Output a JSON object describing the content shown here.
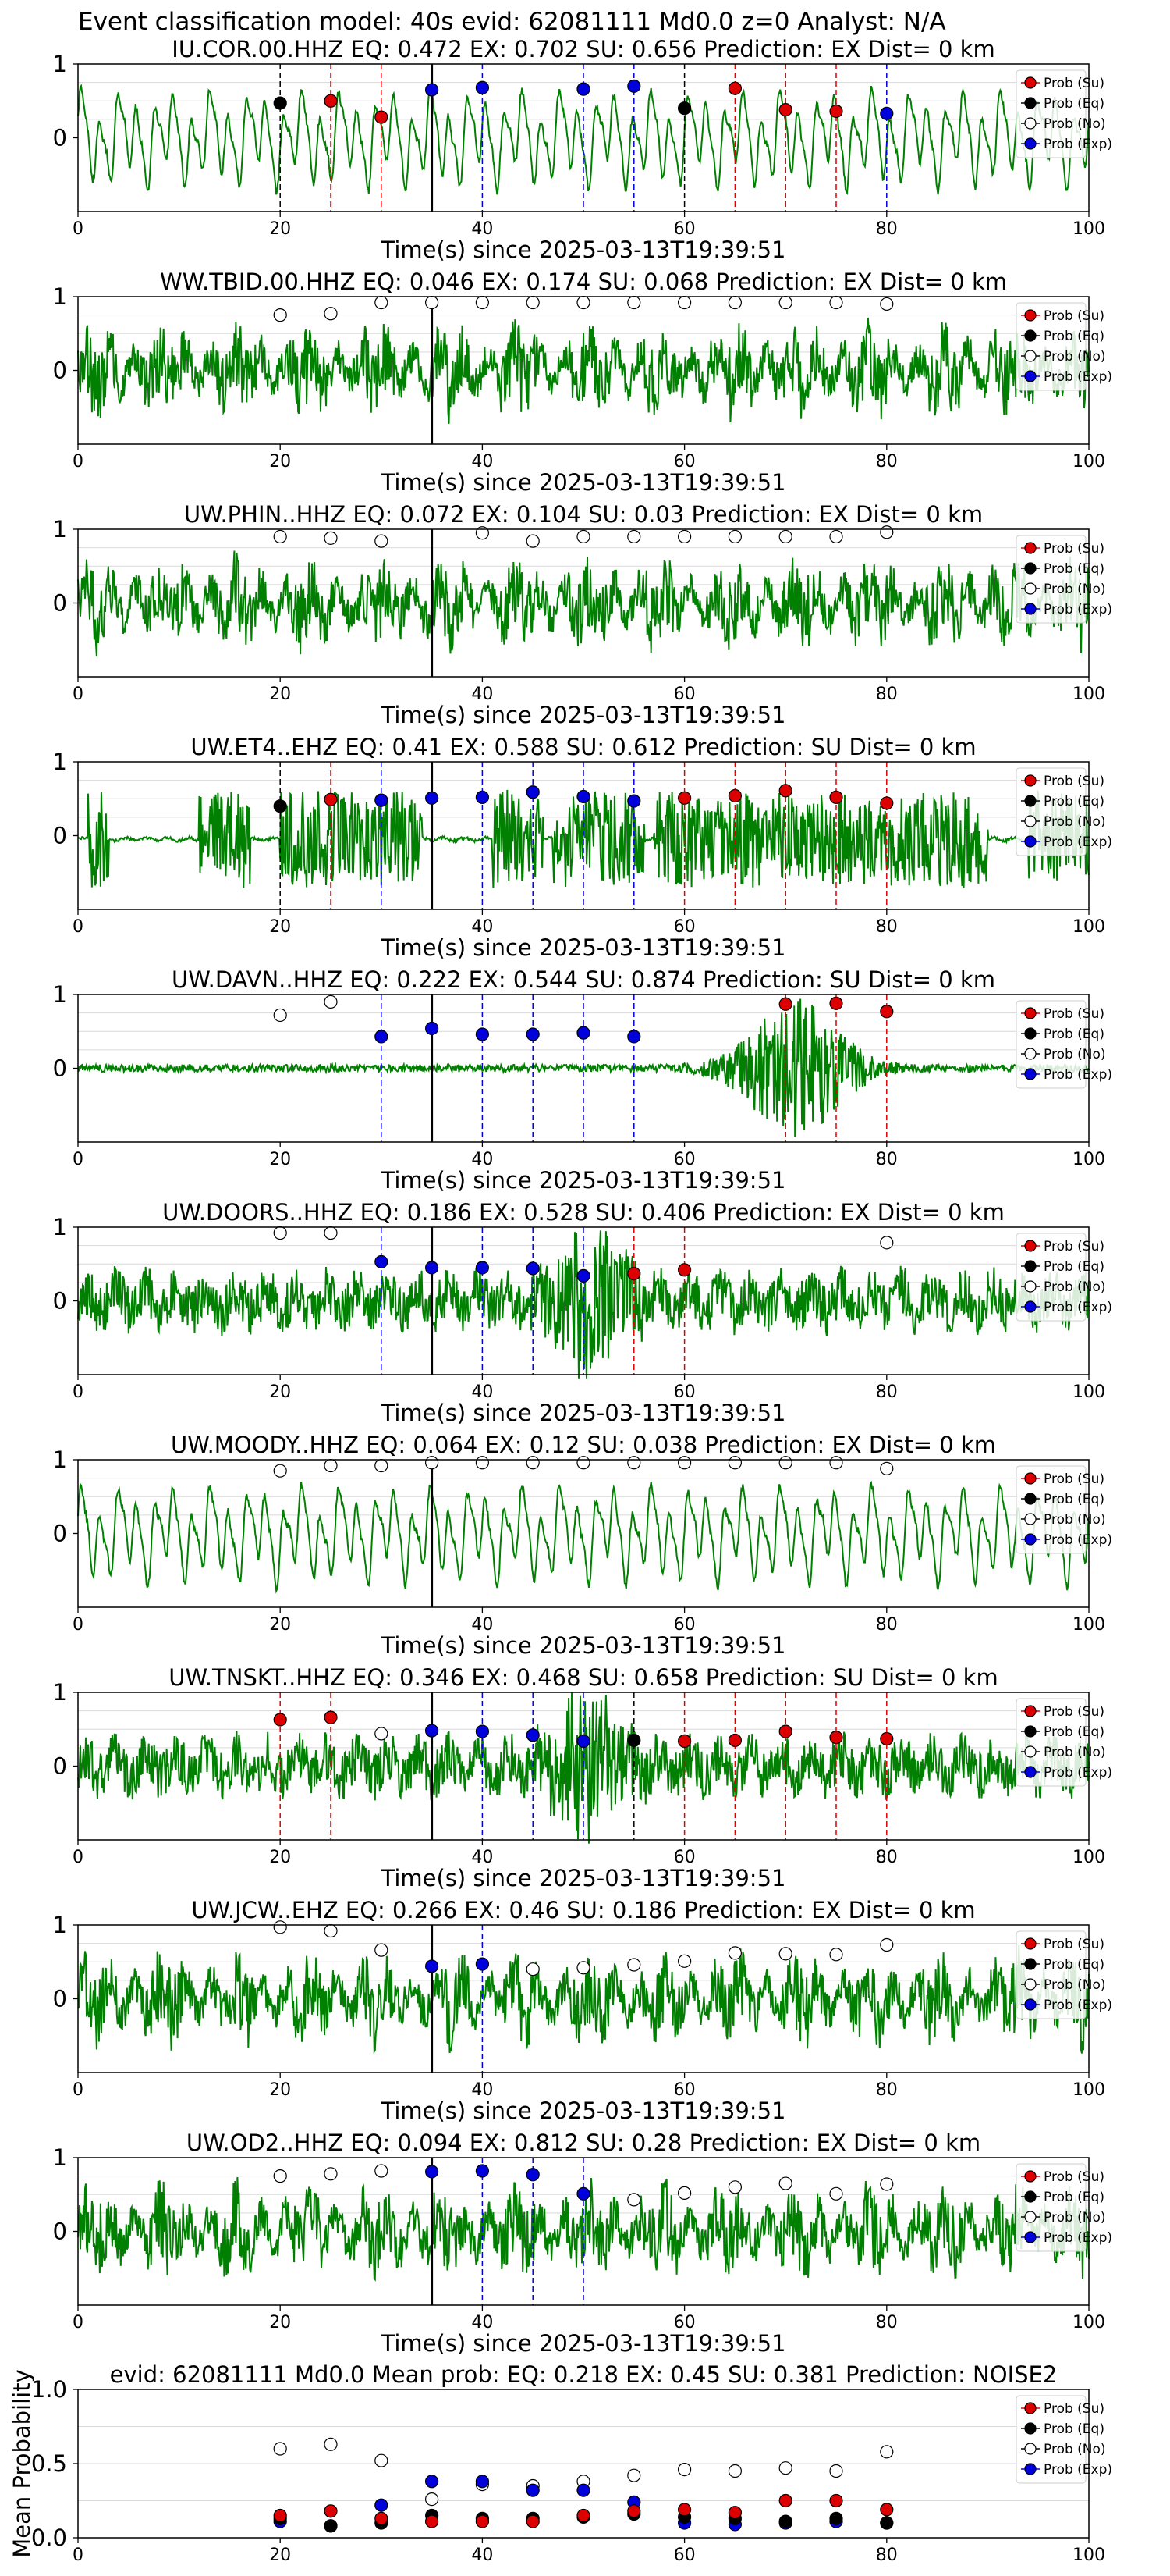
{
  "figure": {
    "suptitle": "Event classification model: 40s evid: 62081111 Md0.0 z=0 Analyst: N/A",
    "xlabel": "Time(s) since 2025-03-13T19:39:51",
    "legend": [
      "Prob (Su)",
      "Prob (Eq)",
      "Prob (No)",
      "Prob (Exp)"
    ],
    "colors": {
      "su": "#dd0000",
      "eq": "#000000",
      "no": "#ffffff",
      "exp": "#0000dd",
      "trace": "#008000",
      "grid": "#d9d9d9"
    }
  },
  "chart_data": [
    {
      "type": "line",
      "title": "IU.COR.00.HHZ   EQ: 0.472  EX: 0.702  SU: 0.656   Prediction: EX    Dist= 0 km",
      "xlim": [
        0,
        100
      ],
      "ylim": [
        -1,
        1
      ],
      "xticks": [
        0,
        20,
        40,
        60,
        80,
        100
      ],
      "yticks": [
        0,
        1
      ],
      "grid": true,
      "trace_style": "lowfreq",
      "origin_line": 35,
      "eq_lines": [
        20,
        60
      ],
      "su_lines": [
        25,
        30,
        65,
        70,
        75
      ],
      "exp_lines": [
        35,
        40,
        50,
        55,
        80
      ],
      "points": [
        {
          "x": 20,
          "y": 0.47,
          "cls": "eq"
        },
        {
          "x": 25,
          "y": 0.5,
          "cls": "su"
        },
        {
          "x": 30,
          "y": 0.28,
          "cls": "su"
        },
        {
          "x": 35,
          "y": 0.65,
          "cls": "exp"
        },
        {
          "x": 40,
          "y": 0.68,
          "cls": "exp"
        },
        {
          "x": 50,
          "y": 0.66,
          "cls": "exp"
        },
        {
          "x": 55,
          "y": 0.7,
          "cls": "exp"
        },
        {
          "x": 60,
          "y": 0.4,
          "cls": "eq"
        },
        {
          "x": 65,
          "y": 0.67,
          "cls": "su"
        },
        {
          "x": 70,
          "y": 0.38,
          "cls": "su"
        },
        {
          "x": 75,
          "y": 0.36,
          "cls": "su"
        },
        {
          "x": 80,
          "y": 0.33,
          "cls": "exp"
        }
      ]
    },
    {
      "type": "line",
      "title": "WW.TBID.00.HHZ   EQ: 0.046  EX: 0.174  SU: 0.068   Prediction: EX    Dist= 0 km",
      "xlim": [
        0,
        100
      ],
      "ylim": [
        -1,
        1
      ],
      "xticks": [
        0,
        20,
        40,
        60,
        80,
        100
      ],
      "yticks": [
        0,
        1
      ],
      "grid": true,
      "trace_style": "noise",
      "origin_line": 35,
      "eq_lines": [],
      "su_lines": [],
      "exp_lines": [],
      "points": [
        {
          "x": 20,
          "y": 0.75,
          "cls": "no"
        },
        {
          "x": 25,
          "y": 0.77,
          "cls": "no"
        },
        {
          "x": 30,
          "y": 0.92,
          "cls": "no"
        },
        {
          "x": 35,
          "y": 0.92,
          "cls": "no"
        },
        {
          "x": 40,
          "y": 0.92,
          "cls": "no"
        },
        {
          "x": 45,
          "y": 0.92,
          "cls": "no"
        },
        {
          "x": 50,
          "y": 0.92,
          "cls": "no"
        },
        {
          "x": 55,
          "y": 0.92,
          "cls": "no"
        },
        {
          "x": 60,
          "y": 0.92,
          "cls": "no"
        },
        {
          "x": 65,
          "y": 0.92,
          "cls": "no"
        },
        {
          "x": 70,
          "y": 0.92,
          "cls": "no"
        },
        {
          "x": 75,
          "y": 0.92,
          "cls": "no"
        },
        {
          "x": 80,
          "y": 0.9,
          "cls": "no"
        }
      ]
    },
    {
      "type": "line",
      "title": "UW.PHIN..HHZ   EQ: 0.072  EX: 0.104  SU: 0.03   Prediction: EX    Dist= 0 km",
      "xlim": [
        0,
        100
      ],
      "ylim": [
        -1,
        1
      ],
      "xticks": [
        0,
        20,
        40,
        60,
        80,
        100
      ],
      "yticks": [
        0,
        1
      ],
      "grid": true,
      "trace_style": "noise",
      "origin_line": 35,
      "eq_lines": [],
      "su_lines": [],
      "exp_lines": [],
      "points": [
        {
          "x": 20,
          "y": 0.9,
          "cls": "no"
        },
        {
          "x": 25,
          "y": 0.88,
          "cls": "no"
        },
        {
          "x": 30,
          "y": 0.84,
          "cls": "no"
        },
        {
          "x": 40,
          "y": 0.95,
          "cls": "no"
        },
        {
          "x": 45,
          "y": 0.84,
          "cls": "no"
        },
        {
          "x": 50,
          "y": 0.9,
          "cls": "no"
        },
        {
          "x": 55,
          "y": 0.9,
          "cls": "no"
        },
        {
          "x": 60,
          "y": 0.9,
          "cls": "no"
        },
        {
          "x": 65,
          "y": 0.9,
          "cls": "no"
        },
        {
          "x": 70,
          "y": 0.9,
          "cls": "no"
        },
        {
          "x": 75,
          "y": 0.9,
          "cls": "no"
        },
        {
          "x": 80,
          "y": 0.96,
          "cls": "no"
        }
      ]
    },
    {
      "type": "line",
      "title": "UW.ET4..EHZ   EQ: 0.41  EX: 0.588  SU: 0.612   Prediction: SU    Dist= 0 km",
      "xlim": [
        0,
        100
      ],
      "ylim": [
        -1,
        1
      ],
      "xticks": [
        0,
        20,
        40,
        60,
        80,
        100
      ],
      "yticks": [
        0,
        1
      ],
      "grid": true,
      "trace_style": "bursts",
      "origin_line": 35,
      "eq_lines": [
        20
      ],
      "su_lines": [
        25,
        60,
        65,
        70,
        75,
        80
      ],
      "exp_lines": [
        30,
        40,
        45,
        50,
        55
      ],
      "points": [
        {
          "x": 20,
          "y": 0.4,
          "cls": "eq"
        },
        {
          "x": 25,
          "y": 0.49,
          "cls": "su"
        },
        {
          "x": 30,
          "y": 0.48,
          "cls": "exp"
        },
        {
          "x": 35,
          "y": 0.51,
          "cls": "exp"
        },
        {
          "x": 40,
          "y": 0.52,
          "cls": "exp"
        },
        {
          "x": 45,
          "y": 0.59,
          "cls": "exp"
        },
        {
          "x": 50,
          "y": 0.53,
          "cls": "exp"
        },
        {
          "x": 55,
          "y": 0.47,
          "cls": "exp"
        },
        {
          "x": 60,
          "y": 0.51,
          "cls": "su"
        },
        {
          "x": 65,
          "y": 0.54,
          "cls": "su"
        },
        {
          "x": 70,
          "y": 0.61,
          "cls": "su"
        },
        {
          "x": 75,
          "y": 0.52,
          "cls": "su"
        },
        {
          "x": 80,
          "y": 0.44,
          "cls": "su"
        }
      ]
    },
    {
      "type": "line",
      "title": "UW.DAVN..HHZ   EQ: 0.222  EX: 0.544  SU: 0.874   Prediction: SU    Dist= 0 km",
      "xlim": [
        0,
        100
      ],
      "ylim": [
        -1,
        1
      ],
      "xticks": [
        0,
        20,
        40,
        60,
        80,
        100
      ],
      "yticks": [
        0,
        1
      ],
      "grid": true,
      "trace_style": "quiet_event",
      "origin_line": 35,
      "eq_lines": [],
      "su_lines": [
        70,
        75,
        80
      ],
      "exp_lines": [
        30,
        40,
        45,
        50,
        55
      ],
      "points": [
        {
          "x": 20,
          "y": 0.72,
          "cls": "no"
        },
        {
          "x": 25,
          "y": 0.9,
          "cls": "no"
        },
        {
          "x": 30,
          "y": 0.43,
          "cls": "exp"
        },
        {
          "x": 35,
          "y": 0.54,
          "cls": "exp"
        },
        {
          "x": 40,
          "y": 0.46,
          "cls": "exp"
        },
        {
          "x": 45,
          "y": 0.46,
          "cls": "exp"
        },
        {
          "x": 50,
          "y": 0.48,
          "cls": "exp"
        },
        {
          "x": 55,
          "y": 0.43,
          "cls": "exp"
        },
        {
          "x": 70,
          "y": 0.87,
          "cls": "su"
        },
        {
          "x": 75,
          "y": 0.88,
          "cls": "su"
        },
        {
          "x": 80,
          "y": 0.77,
          "cls": "su"
        }
      ]
    },
    {
      "type": "line",
      "title": "UW.DOORS..HHZ   EQ: 0.186  EX: 0.528  SU: 0.406   Prediction: EX    Dist= 0 km",
      "xlim": [
        0,
        100
      ],
      "ylim": [
        -1,
        1
      ],
      "xticks": [
        0,
        20,
        40,
        60,
        80,
        100
      ],
      "yticks": [
        0,
        1
      ],
      "grid": true,
      "trace_style": "mid_event",
      "origin_line": 35,
      "eq_lines": [],
      "su_lines": [
        55,
        60
      ],
      "exp_lines": [
        30,
        40,
        45,
        50
      ],
      "points": [
        {
          "x": 20,
          "y": 0.92,
          "cls": "no"
        },
        {
          "x": 25,
          "y": 0.92,
          "cls": "no"
        },
        {
          "x": 30,
          "y": 0.53,
          "cls": "exp"
        },
        {
          "x": 35,
          "y": 0.45,
          "cls": "exp"
        },
        {
          "x": 40,
          "y": 0.45,
          "cls": "exp"
        },
        {
          "x": 45,
          "y": 0.44,
          "cls": "exp"
        },
        {
          "x": 50,
          "y": 0.34,
          "cls": "exp"
        },
        {
          "x": 55,
          "y": 0.37,
          "cls": "su"
        },
        {
          "x": 60,
          "y": 0.42,
          "cls": "su"
        },
        {
          "x": 80,
          "y": 0.79,
          "cls": "no"
        }
      ]
    },
    {
      "type": "line",
      "title": "UW.MOODY..HHZ   EQ: 0.064  EX: 0.12  SU: 0.038   Prediction: EX    Dist= 0 km",
      "xlim": [
        0,
        100
      ],
      "ylim": [
        -1,
        1
      ],
      "xticks": [
        0,
        20,
        40,
        60,
        80,
        100
      ],
      "yticks": [
        0,
        1
      ],
      "grid": true,
      "trace_style": "lowfreq",
      "origin_line": 35,
      "eq_lines": [],
      "su_lines": [],
      "exp_lines": [],
      "points": [
        {
          "x": 20,
          "y": 0.85,
          "cls": "no"
        },
        {
          "x": 25,
          "y": 0.92,
          "cls": "no"
        },
        {
          "x": 30,
          "y": 0.92,
          "cls": "no"
        },
        {
          "x": 35,
          "y": 0.96,
          "cls": "no"
        },
        {
          "x": 40,
          "y": 0.96,
          "cls": "no"
        },
        {
          "x": 45,
          "y": 0.96,
          "cls": "no"
        },
        {
          "x": 50,
          "y": 0.96,
          "cls": "no"
        },
        {
          "x": 55,
          "y": 0.96,
          "cls": "no"
        },
        {
          "x": 60,
          "y": 0.96,
          "cls": "no"
        },
        {
          "x": 65,
          "y": 0.96,
          "cls": "no"
        },
        {
          "x": 70,
          "y": 0.96,
          "cls": "no"
        },
        {
          "x": 75,
          "y": 0.96,
          "cls": "no"
        },
        {
          "x": 80,
          "y": 0.88,
          "cls": "no"
        }
      ]
    },
    {
      "type": "line",
      "title": "UW.TNSKT..HHZ   EQ: 0.346  EX: 0.468  SU: 0.658   Prediction: SU    Dist= 0 km",
      "xlim": [
        0,
        100
      ],
      "ylim": [
        -1,
        1
      ],
      "xticks": [
        0,
        20,
        40,
        60,
        80,
        100
      ],
      "yticks": [
        0,
        1
      ],
      "grid": true,
      "trace_style": "mid_event",
      "origin_line": 35,
      "eq_lines": [
        55
      ],
      "su_lines": [
        20,
        25,
        60,
        65,
        70,
        75,
        80
      ],
      "exp_lines": [
        40,
        45,
        50
      ],
      "points": [
        {
          "x": 20,
          "y": 0.63,
          "cls": "su"
        },
        {
          "x": 25,
          "y": 0.66,
          "cls": "su"
        },
        {
          "x": 30,
          "y": 0.44,
          "cls": "no"
        },
        {
          "x": 35,
          "y": 0.48,
          "cls": "exp"
        },
        {
          "x": 40,
          "y": 0.47,
          "cls": "exp"
        },
        {
          "x": 45,
          "y": 0.42,
          "cls": "exp"
        },
        {
          "x": 50,
          "y": 0.34,
          "cls": "exp"
        },
        {
          "x": 55,
          "y": 0.35,
          "cls": "eq"
        },
        {
          "x": 60,
          "y": 0.34,
          "cls": "su"
        },
        {
          "x": 65,
          "y": 0.35,
          "cls": "su"
        },
        {
          "x": 70,
          "y": 0.47,
          "cls": "su"
        },
        {
          "x": 75,
          "y": 0.39,
          "cls": "su"
        },
        {
          "x": 80,
          "y": 0.37,
          "cls": "su"
        }
      ]
    },
    {
      "type": "line",
      "title": "UW.JCW..EHZ   EQ: 0.266  EX: 0.46  SU: 0.186   Prediction: EX    Dist= 0 km",
      "xlim": [
        0,
        100
      ],
      "ylim": [
        -1,
        1
      ],
      "xticks": [
        0,
        20,
        40,
        60,
        80,
        100
      ],
      "yticks": [
        0,
        1
      ],
      "grid": true,
      "trace_style": "noise",
      "origin_line": 35,
      "eq_lines": [],
      "su_lines": [],
      "exp_lines": [
        40
      ],
      "points": [
        {
          "x": 20,
          "y": 0.97,
          "cls": "no"
        },
        {
          "x": 25,
          "y": 0.92,
          "cls": "no"
        },
        {
          "x": 30,
          "y": 0.66,
          "cls": "no"
        },
        {
          "x": 35,
          "y": 0.44,
          "cls": "exp"
        },
        {
          "x": 40,
          "y": 0.47,
          "cls": "exp"
        },
        {
          "x": 45,
          "y": 0.4,
          "cls": "no"
        },
        {
          "x": 50,
          "y": 0.42,
          "cls": "no"
        },
        {
          "x": 55,
          "y": 0.46,
          "cls": "no"
        },
        {
          "x": 60,
          "y": 0.51,
          "cls": "no"
        },
        {
          "x": 65,
          "y": 0.62,
          "cls": "no"
        },
        {
          "x": 70,
          "y": 0.61,
          "cls": "no"
        },
        {
          "x": 75,
          "y": 0.6,
          "cls": "no"
        },
        {
          "x": 80,
          "y": 0.73,
          "cls": "no"
        }
      ]
    },
    {
      "type": "line",
      "title": "UW.OD2..HHZ   EQ: 0.094  EX: 0.812  SU: 0.28   Prediction: EX    Dist= 0 km",
      "xlim": [
        0,
        100
      ],
      "ylim": [
        -1,
        1
      ],
      "xticks": [
        0,
        20,
        40,
        60,
        80,
        100
      ],
      "yticks": [
        0,
        1
      ],
      "grid": true,
      "trace_style": "noise",
      "origin_line": 35,
      "eq_lines": [],
      "su_lines": [],
      "exp_lines": [
        40,
        45,
        50
      ],
      "points": [
        {
          "x": 20,
          "y": 0.75,
          "cls": "no"
        },
        {
          "x": 25,
          "y": 0.78,
          "cls": "no"
        },
        {
          "x": 30,
          "y": 0.82,
          "cls": "no"
        },
        {
          "x": 35,
          "y": 0.81,
          "cls": "exp"
        },
        {
          "x": 40,
          "y": 0.82,
          "cls": "exp"
        },
        {
          "x": 45,
          "y": 0.77,
          "cls": "exp"
        },
        {
          "x": 50,
          "y": 0.51,
          "cls": "exp"
        },
        {
          "x": 55,
          "y": 0.43,
          "cls": "no"
        },
        {
          "x": 60,
          "y": 0.52,
          "cls": "no"
        },
        {
          "x": 65,
          "y": 0.6,
          "cls": "no"
        },
        {
          "x": 70,
          "y": 0.65,
          "cls": "no"
        },
        {
          "x": 75,
          "y": 0.51,
          "cls": "no"
        },
        {
          "x": 80,
          "y": 0.64,
          "cls": "no"
        }
      ]
    },
    {
      "type": "scatter",
      "title": "evid: 62081111  Md0.0   Mean prob:   EQ: 0.218  EX: 0.45  SU: 0.381   Prediction: NOISE2",
      "ylabel": "Mean Probability",
      "xlim": [
        0,
        100
      ],
      "ylim": [
        0,
        1
      ],
      "xticks": [
        0,
        20,
        40,
        60,
        80,
        100
      ],
      "yticks": [
        0.0,
        0.5,
        1.0
      ],
      "ytick_labels": [
        "0.0",
        "0.5",
        "1.0"
      ],
      "grid": true,
      "x": [
        20,
        25,
        30,
        35,
        40,
        45,
        50,
        55,
        60,
        65,
        70,
        75,
        80
      ],
      "series": [
        {
          "name": "Prob (No)",
          "cls": "no",
          "values": [
            0.6,
            0.63,
            0.52,
            0.26,
            0.36,
            0.35,
            0.38,
            0.42,
            0.46,
            0.45,
            0.47,
            0.45,
            0.58
          ]
        },
        {
          "name": "Prob (Exp)",
          "cls": "exp",
          "values": [
            0.11,
            0.08,
            0.22,
            0.38,
            0.38,
            0.32,
            0.32,
            0.24,
            0.1,
            0.09,
            0.1,
            0.11,
            0.1
          ]
        },
        {
          "name": "Prob (Eq)",
          "cls": "eq",
          "values": [
            0.13,
            0.08,
            0.1,
            0.15,
            0.13,
            0.13,
            0.14,
            0.16,
            0.14,
            0.13,
            0.11,
            0.13,
            0.1
          ]
        },
        {
          "name": "Prob (Su)",
          "cls": "su",
          "values": [
            0.15,
            0.18,
            0.13,
            0.11,
            0.11,
            0.11,
            0.15,
            0.18,
            0.19,
            0.17,
            0.25,
            0.25,
            0.19
          ]
        }
      ]
    }
  ]
}
